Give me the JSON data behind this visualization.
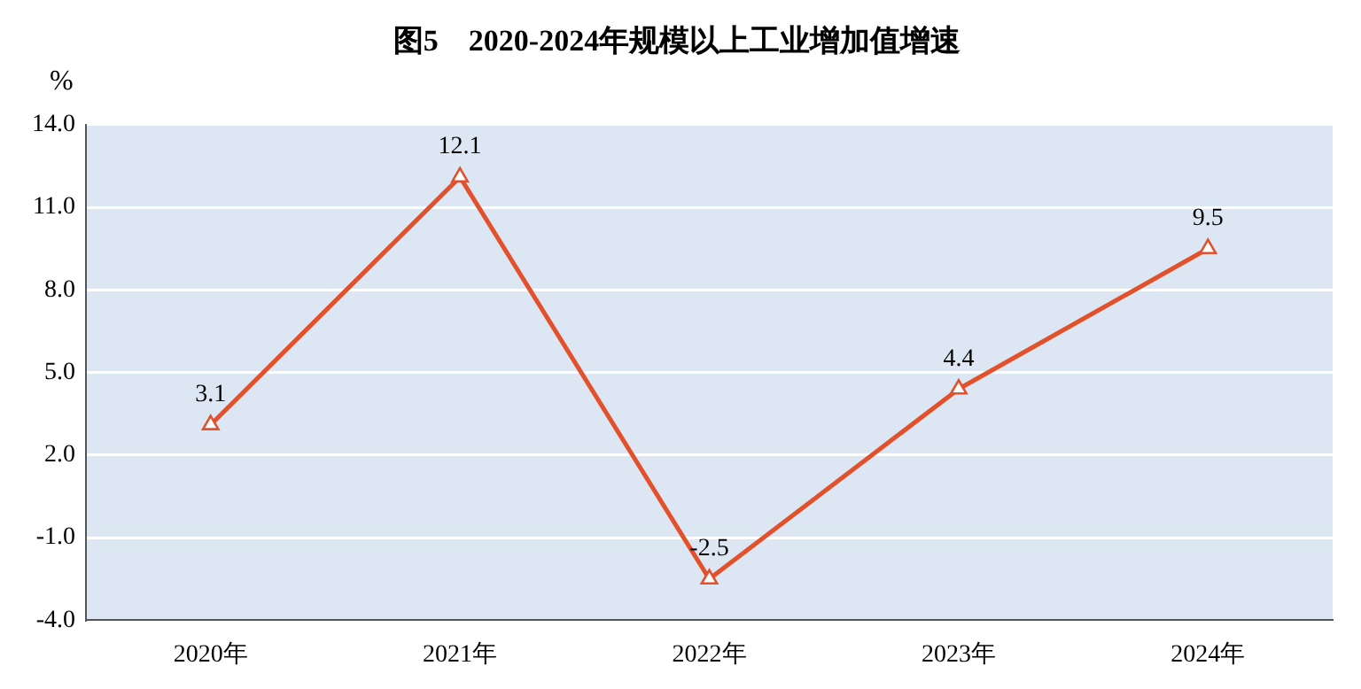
{
  "chart_data": {
    "type": "line",
    "title": "图5　2020-2024年规模以上工业增加值增速",
    "ylabel": "%",
    "categories": [
      "2020年",
      "2021年",
      "2022年",
      "2023年",
      "2024年"
    ],
    "series": [
      {
        "color": "#e2502c",
        "values": [
          3.1,
          12.1,
          -2.5,
          4.4,
          9.5
        ]
      }
    ],
    "ylim": [
      -4,
      14
    ],
    "yticks": [
      {
        "value": -4,
        "label": "-4.0"
      },
      {
        "value": -1,
        "label": "-1.0"
      },
      {
        "value": 2,
        "label": "2.0"
      },
      {
        "value": 5,
        "label": "5.0"
      },
      {
        "value": 8,
        "label": "8.0"
      },
      {
        "value": 11,
        "label": "11.0"
      },
      {
        "value": 14,
        "label": "14.0"
      }
    ],
    "grid": "y",
    "legend": false,
    "marker": "triangle",
    "line_style": "solid",
    "data_labels": true
  }
}
